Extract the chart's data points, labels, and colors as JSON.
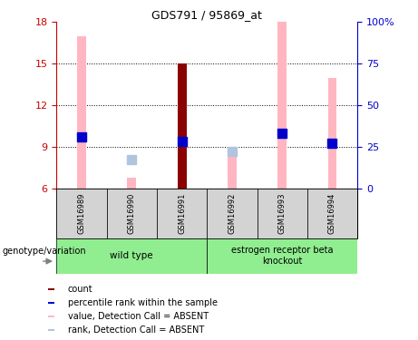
{
  "title": "GDS791 / 95869_at",
  "samples": [
    "GSM16989",
    "GSM16990",
    "GSM16991",
    "GSM16992",
    "GSM16993",
    "GSM16994"
  ],
  "ylim_left": [
    6,
    18
  ],
  "ylim_right": [
    0,
    100
  ],
  "yticks_left": [
    6,
    9,
    12,
    15,
    18
  ],
  "yticks_right": [
    0,
    25,
    50,
    75,
    100
  ],
  "ytick_labels_right": [
    "0",
    "25",
    "50",
    "75",
    "100%"
  ],
  "pink_bar_heights": [
    17.0,
    6.8,
    null,
    8.5,
    18.0,
    14.0
  ],
  "dark_red_bar_height": 15.0,
  "dark_red_bar_index": 2,
  "blue_square_values": [
    9.7,
    null,
    9.4,
    null,
    10.0,
    9.3
  ],
  "light_blue_square_values": [
    null,
    8.1,
    null,
    8.7,
    null,
    null
  ],
  "legend_items": [
    {
      "color": "#8B0000",
      "label": "count"
    },
    {
      "color": "#0000CD",
      "label": "percentile rank within the sample"
    },
    {
      "color": "#FFB6C1",
      "label": "value, Detection Call = ABSENT"
    },
    {
      "color": "#B0C4DE",
      "label": "rank, Detection Call = ABSENT"
    }
  ],
  "bar_width": 0.18,
  "blue_square_size": 45,
  "left_tick_color": "#CC0000",
  "right_tick_color": "#0000CC",
  "plot_bg": "white",
  "genotype_label": "genotype/variation",
  "pink_color": "#FFB6C1",
  "dark_red_color": "#8B0000",
  "blue_color": "#0000CD",
  "light_blue_color": "#B0C4DE",
  "gray_box_color": "#d3d3d3",
  "green_box_color": "#90EE90"
}
